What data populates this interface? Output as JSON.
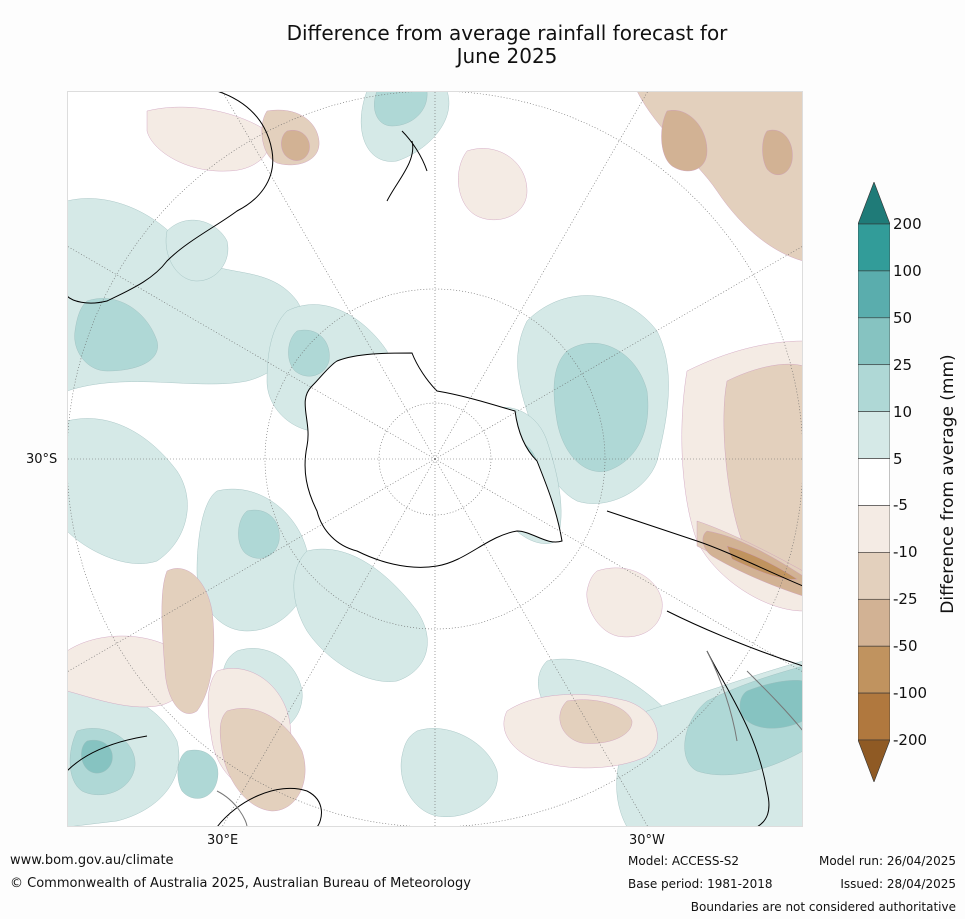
{
  "title": {
    "line1": "Difference from average rainfall forecast for",
    "line2": "June 2025"
  },
  "map": {
    "projection": "south-polar-stereographic",
    "labels": {
      "lat_30s": "30°S",
      "lon_30e": "30°E",
      "lon_30w": "30°W"
    },
    "colors": {
      "ocean_bg": "#ffffff",
      "wet_light": "#d5e9e7",
      "wet_mid": "#afd8d6",
      "wet_strong": "#86c3c1",
      "wet_heavy": "#5aadad",
      "dry_light": "#f4ebe4",
      "dry_mid": "#e3d0bd",
      "dry_strong": "#d2b294",
      "dry_heavy": "#c0935f"
    }
  },
  "colorbar": {
    "label": "Difference from average (mm)",
    "ticks": [
      "200",
      "100",
      "50",
      "25",
      "10",
      "5",
      "-5",
      "-10",
      "-25",
      "-50",
      "-100",
      "-200"
    ],
    "colors": [
      "#1f7b78",
      "#329c99",
      "#5aadad",
      "#86c3c1",
      "#afd8d6",
      "#d5e9e7",
      "#ffffff",
      "#f4ebe4",
      "#e3d0bd",
      "#d2b294",
      "#c0935f",
      "#b0783e",
      "#8f5a24"
    ]
  },
  "footer": {
    "website": "www.bom.gov.au/climate",
    "copyright": "© Commonwealth of Australia 2025, Australian Bureau of Meteorology",
    "model": "Model: ACCESS-S2",
    "base_period": "Base period: 1981-2018",
    "model_run": "Model run: 26/04/2025",
    "issued": "Issued: 28/04/2025",
    "disclaimer": "Boundaries are not considered authoritative"
  }
}
